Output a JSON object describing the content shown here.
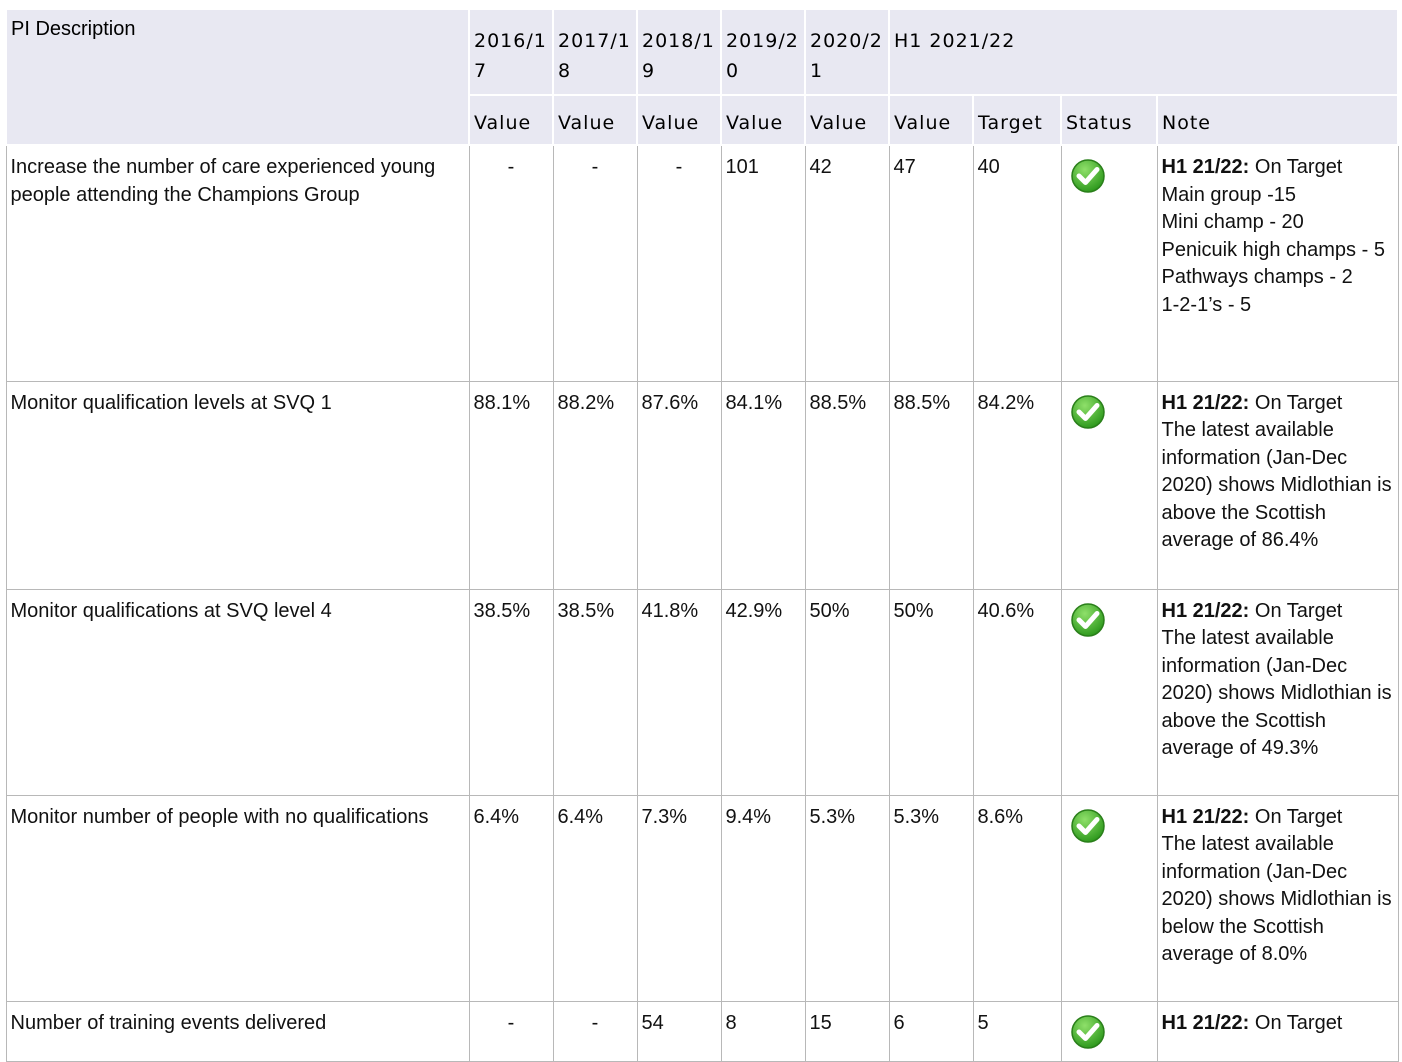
{
  "table": {
    "header": {
      "pi": "PI Description",
      "years": [
        "2016/17",
        "2017/18",
        "2018/19",
        "2019/20",
        "2020/21"
      ],
      "current": "H1 2021/22",
      "subheaders": [
        "Value",
        "Value",
        "Value",
        "Value",
        "Value",
        "Value",
        "Target",
        "Status",
        "Note"
      ]
    },
    "rows": [
      {
        "description": "Increase the number of care experienced young people attending the Champions Group",
        "values": [
          "-",
          "-",
          "-",
          "101",
          "42",
          "47",
          "40"
        ],
        "note": {
          "label": "H1 21/22:",
          "text": "On Target",
          "lines": [
            "Main group -15",
            "Mini champ - 20",
            "Penicuik high champs - 5",
            "Pathways champs - 2",
            "1-2-1’s - 5"
          ]
        }
      },
      {
        "description": "Monitor qualification levels at SVQ 1",
        "values": [
          "88.1%",
          "88.2%",
          "87.6%",
          "84.1%",
          "88.5%",
          "88.5%",
          "84.2%"
        ],
        "note": {
          "label": "H1 21/22:",
          "text": "On Target",
          "lines": [
            "The latest available information (Jan-Dec 2020) shows Midlothian is above the Scottish average of 86.4%"
          ]
        }
      },
      {
        "description": "Monitor qualifications at SVQ level 4",
        "values": [
          "38.5%",
          "38.5%",
          "41.8%",
          "42.9%",
          "50%",
          "50%",
          "40.6%"
        ],
        "note": {
          "label": "H1 21/22:",
          "text": "On Target",
          "lines": [
            "The latest available information (Jan-Dec 2020) shows Midlothian is above the Scottish average of 49.3%"
          ]
        }
      },
      {
        "description": "Monitor number of people with no qualifications",
        "values": [
          "6.4%",
          "6.4%",
          "7.3%",
          "9.4%",
          "5.3%",
          "5.3%",
          "8.6%"
        ],
        "note": {
          "label": "H1 21/22:",
          "text": "On Target",
          "lines": [
            "The latest available information (Jan-Dec 2020) shows Midlothian is below the Scottish average of 8.0%"
          ]
        }
      },
      {
        "description": "Number of training events delivered",
        "values": [
          "-",
          "-",
          "54",
          "8",
          "15",
          "6",
          "5"
        ],
        "note": {
          "label": "H1 21/22:",
          "text": "On Target",
          "lines": []
        }
      }
    ]
  }
}
